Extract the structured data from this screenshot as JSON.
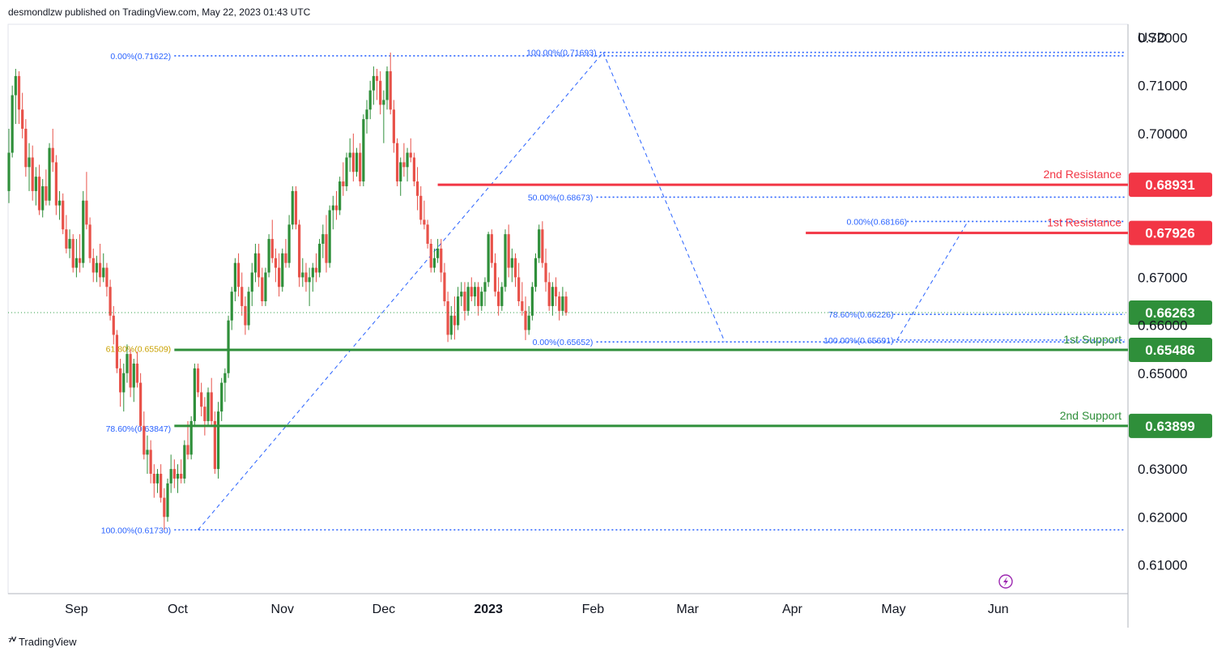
{
  "header": {
    "text": "desmondlzw published on TradingView.com, May 22, 2023 01:43 UTC"
  },
  "footer": {
    "brand": "TradingView"
  },
  "chart_data": {
    "type": "candlestick",
    "currency": "USD",
    "ylim": [
      0.6045,
      0.7255
    ],
    "y_ticks": [
      {
        "v": 0.72,
        "label": "0.72000"
      },
      {
        "v": 0.71,
        "label": "0.71000"
      },
      {
        "v": 0.7,
        "label": "0.70000"
      },
      {
        "v": 0.67,
        "label": "0.67000"
      },
      {
        "v": 0.66,
        "label": "0.66000"
      },
      {
        "v": 0.65,
        "label": "0.65000"
      },
      {
        "v": 0.63,
        "label": "0.63000"
      },
      {
        "v": 0.62,
        "label": "0.62000"
      },
      {
        "v": 0.61,
        "label": "0.61000"
      }
    ],
    "x_ticks": [
      {
        "label": "Sep",
        "d": 20,
        "bold": false
      },
      {
        "label": "Oct",
        "d": 50,
        "bold": false
      },
      {
        "label": "Nov",
        "d": 81,
        "bold": false
      },
      {
        "label": "Dec",
        "d": 111,
        "bold": false
      },
      {
        "label": "2023",
        "d": 142,
        "bold": true
      },
      {
        "label": "Feb",
        "d": 173,
        "bold": false
      },
      {
        "label": "Mar",
        "d": 201,
        "bold": false
      },
      {
        "label": "Apr",
        "d": 232,
        "bold": false
      },
      {
        "label": "May",
        "d": 262,
        "bold": false
      },
      {
        "label": "Jun",
        "d": 293,
        "bold": false
      }
    ],
    "levels": [
      {
        "name": "2nd Resistance",
        "price": 0.68931,
        "label": "0.68931",
        "kind": "resistance",
        "from_d": 127
      },
      {
        "name": "1st Resistance",
        "price": 0.67926,
        "label": "0.67926",
        "kind": "resistance",
        "from_d": 236
      },
      {
        "name": "1st Support",
        "price": 0.65486,
        "label": "0.65486",
        "kind": "support",
        "from_d": 49
      },
      {
        "name": "2nd Support",
        "price": 0.63899,
        "label": "0.63899",
        "kind": "support",
        "from_d": 49
      }
    ],
    "last_price": {
      "price": 0.66263,
      "label": "0.66263"
    },
    "fib_labels": [
      {
        "text": "0.00%(0.71622)",
        "d": 48,
        "price": 0.71622,
        "color": "#2962ff"
      },
      {
        "text": "100.00%(0.71693)",
        "d": 174,
        "price": 0.71693,
        "color": "#2962ff"
      },
      {
        "text": "50.00%(0.68673)",
        "d": 173,
        "price": 0.68673,
        "color": "#2962ff"
      },
      {
        "text": "0.00%(0.65652)",
        "d": 173,
        "price": 0.65652,
        "color": "#2962ff"
      },
      {
        "text": "0.00%(0.68166)",
        "d": 266,
        "price": 0.68166,
        "color": "#2962ff"
      },
      {
        "text": "78.60%(0.66226)",
        "d": 262,
        "price": 0.66226,
        "color": "#2962ff"
      },
      {
        "text": "100.00%(0.65691)",
        "d": 262,
        "price": 0.65691,
        "color": "#2962ff"
      },
      {
        "text": "61.80%(0.65509)",
        "d": 48,
        "price": 0.65509,
        "color": "#c9a100"
      },
      {
        "text": "78.60%(0.63847)",
        "d": 48,
        "price": 0.63847,
        "color": "#2962ff"
      },
      {
        "text": "100.00%(0.61730)",
        "d": 48,
        "price": 0.6173,
        "color": "#2962ff"
      }
    ],
    "fib_lines": [
      {
        "price": 0.71622,
        "from_d": 49,
        "to_d": 0,
        "color": "#2962ff"
      },
      {
        "price": 0.71693,
        "from_d": 175,
        "to_d": 0,
        "color": "#2962ff"
      },
      {
        "price": 0.68673,
        "from_d": 174,
        "to_d": 0,
        "color": "#2962ff"
      },
      {
        "price": 0.65652,
        "from_d": 174,
        "to_d": 0,
        "color": "#2962ff"
      },
      {
        "price": 0.68166,
        "from_d": 266,
        "to_d": 0,
        "color": "#2962ff"
      },
      {
        "price": 0.66226,
        "from_d": 262,
        "to_d": 0,
        "color": "#2962ff"
      },
      {
        "price": 0.65691,
        "from_d": 262,
        "to_d": 0,
        "color": "#2962ff"
      },
      {
        "price": 0.6173,
        "from_d": 49,
        "to_d": 0,
        "color": "#2962ff"
      }
    ],
    "trend_lines": [
      {
        "d1": 56,
        "p1": 0.6173,
        "d2": 176,
        "p2": 0.71693
      },
      {
        "d1": 176,
        "p1": 0.71693,
        "d2": 212,
        "p2": 0.65652
      },
      {
        "d1": 263,
        "p1": 0.65691,
        "d2": 284,
        "p2": 0.68166
      }
    ],
    "candles": [
      [
        0.688,
        0.701,
        0.6855,
        0.696
      ],
      [
        0.696,
        0.71,
        0.695,
        0.708
      ],
      [
        0.708,
        0.7135,
        0.702,
        0.712
      ],
      [
        0.712,
        0.713,
        0.702,
        0.705
      ],
      [
        0.705,
        0.7085,
        0.699,
        0.701
      ],
      [
        0.701,
        0.703,
        0.691,
        0.693
      ],
      [
        0.693,
        0.698,
        0.688,
        0.695
      ],
      [
        0.695,
        0.6975,
        0.686,
        0.688
      ],
      [
        0.688,
        0.693,
        0.685,
        0.691
      ],
      [
        0.691,
        0.6935,
        0.683,
        0.684
      ],
      [
        0.684,
        0.6905,
        0.6825,
        0.689
      ],
      [
        0.689,
        0.6925,
        0.685,
        0.686
      ],
      [
        0.686,
        0.698,
        0.685,
        0.697
      ],
      [
        0.697,
        0.701,
        0.692,
        0.694
      ],
      [
        0.694,
        0.6955,
        0.683,
        0.685
      ],
      [
        0.685,
        0.688,
        0.682,
        0.686
      ],
      [
        0.686,
        0.6875,
        0.679,
        0.68
      ],
      [
        0.68,
        0.683,
        0.675,
        0.676
      ],
      [
        0.676,
        0.68,
        0.674,
        0.678
      ],
      [
        0.678,
        0.679,
        0.671,
        0.672
      ],
      [
        0.672,
        0.678,
        0.67,
        0.674
      ],
      [
        0.674,
        0.679,
        0.671,
        0.673
      ],
      [
        0.673,
        0.688,
        0.672,
        0.686
      ],
      [
        0.686,
        0.692,
        0.68,
        0.681
      ],
      [
        0.681,
        0.6825,
        0.673,
        0.674
      ],
      [
        0.674,
        0.676,
        0.669,
        0.671
      ],
      [
        0.671,
        0.6745,
        0.669,
        0.673
      ],
      [
        0.673,
        0.677,
        0.668,
        0.67
      ],
      [
        0.67,
        0.675,
        0.669,
        0.672
      ],
      [
        0.672,
        0.673,
        0.666,
        0.668
      ],
      [
        0.668,
        0.6695,
        0.661,
        0.662
      ],
      [
        0.662,
        0.664,
        0.656,
        0.658
      ],
      [
        0.658,
        0.659,
        0.65,
        0.651
      ],
      [
        0.651,
        0.653,
        0.643,
        0.646
      ],
      [
        0.646,
        0.652,
        0.642,
        0.65
      ],
      [
        0.65,
        0.656,
        0.648,
        0.654
      ],
      [
        0.654,
        0.655,
        0.645,
        0.647
      ],
      [
        0.647,
        0.653,
        0.644,
        0.652
      ],
      [
        0.652,
        0.6545,
        0.647,
        0.648
      ],
      [
        0.648,
        0.65,
        0.638,
        0.639
      ],
      [
        0.639,
        0.642,
        0.632,
        0.633
      ],
      [
        0.633,
        0.637,
        0.629,
        0.634
      ],
      [
        0.634,
        0.636,
        0.627,
        0.629
      ],
      [
        0.629,
        0.631,
        0.624,
        0.627
      ],
      [
        0.627,
        0.63,
        0.625,
        0.629
      ],
      [
        0.629,
        0.631,
        0.623,
        0.624
      ],
      [
        0.624,
        0.626,
        0.6173,
        0.62
      ],
      [
        0.62,
        0.628,
        0.619,
        0.627
      ],
      [
        0.627,
        0.633,
        0.625,
        0.63
      ],
      [
        0.63,
        0.632,
        0.626,
        0.628
      ],
      [
        0.628,
        0.631,
        0.625,
        0.629
      ],
      [
        0.629,
        0.632,
        0.627,
        0.628
      ],
      [
        0.628,
        0.636,
        0.627,
        0.635
      ],
      [
        0.635,
        0.64,
        0.632,
        0.633
      ],
      [
        0.633,
        0.641,
        0.632,
        0.64
      ],
      [
        0.64,
        0.652,
        0.639,
        0.651
      ],
      [
        0.651,
        0.652,
        0.645,
        0.646
      ],
      [
        0.646,
        0.648,
        0.641,
        0.643
      ],
      [
        0.643,
        0.645,
        0.637,
        0.64
      ],
      [
        0.64,
        0.647,
        0.639,
        0.646
      ],
      [
        0.646,
        0.649,
        0.639,
        0.64
      ],
      [
        0.64,
        0.642,
        0.629,
        0.63
      ],
      [
        0.63,
        0.644,
        0.628,
        0.642
      ],
      [
        0.642,
        0.649,
        0.64,
        0.648
      ],
      [
        0.648,
        0.651,
        0.644,
        0.65
      ],
      [
        0.65,
        0.662,
        0.649,
        0.661
      ],
      [
        0.661,
        0.668,
        0.659,
        0.667
      ],
      [
        0.667,
        0.674,
        0.665,
        0.673
      ],
      [
        0.673,
        0.675,
        0.666,
        0.668
      ],
      [
        0.668,
        0.671,
        0.662,
        0.664
      ],
      [
        0.664,
        0.666,
        0.658,
        0.66
      ],
      [
        0.66,
        0.668,
        0.659,
        0.667
      ],
      [
        0.667,
        0.673,
        0.664,
        0.671
      ],
      [
        0.671,
        0.677,
        0.669,
        0.675
      ],
      [
        0.675,
        0.677,
        0.668,
        0.67
      ],
      [
        0.67,
        0.672,
        0.664,
        0.665
      ],
      [
        0.665,
        0.672,
        0.664,
        0.671
      ],
      [
        0.671,
        0.679,
        0.67,
        0.678
      ],
      [
        0.678,
        0.682,
        0.673,
        0.674
      ],
      [
        0.674,
        0.676,
        0.669,
        0.672
      ],
      [
        0.672,
        0.675,
        0.666,
        0.668
      ],
      [
        0.668,
        0.676,
        0.667,
        0.675
      ],
      [
        0.675,
        0.678,
        0.672,
        0.673
      ],
      [
        0.673,
        0.683,
        0.672,
        0.681
      ],
      [
        0.681,
        0.689,
        0.68,
        0.688
      ],
      [
        0.688,
        0.689,
        0.68,
        0.681
      ],
      [
        0.681,
        0.682,
        0.668,
        0.67
      ],
      [
        0.67,
        0.674,
        0.668,
        0.671
      ],
      [
        0.671,
        0.673,
        0.667,
        0.669
      ],
      [
        0.669,
        0.672,
        0.664,
        0.67
      ],
      [
        0.67,
        0.673,
        0.667,
        0.672
      ],
      [
        0.672,
        0.675,
        0.669,
        0.671
      ],
      [
        0.671,
        0.678,
        0.67,
        0.677
      ],
      [
        0.677,
        0.681,
        0.674,
        0.679
      ],
      [
        0.679,
        0.683,
        0.671,
        0.673
      ],
      [
        0.673,
        0.685,
        0.672,
        0.684
      ],
      [
        0.684,
        0.687,
        0.68,
        0.685
      ],
      [
        0.685,
        0.688,
        0.682,
        0.684
      ],
      [
        0.684,
        0.691,
        0.683,
        0.69
      ],
      [
        0.69,
        0.694,
        0.687,
        0.689
      ],
      [
        0.689,
        0.696,
        0.688,
        0.695
      ],
      [
        0.695,
        0.699,
        0.692,
        0.696
      ],
      [
        0.696,
        0.7,
        0.69,
        0.692
      ],
      [
        0.692,
        0.697,
        0.691,
        0.696
      ],
      [
        0.696,
        0.698,
        0.689,
        0.69
      ],
      [
        0.69,
        0.704,
        0.689,
        0.703
      ],
      [
        0.703,
        0.707,
        0.7,
        0.705
      ],
      [
        0.705,
        0.711,
        0.703,
        0.709
      ],
      [
        0.709,
        0.714,
        0.706,
        0.712
      ],
      [
        0.712,
        0.7135,
        0.707,
        0.711
      ],
      [
        0.711,
        0.713,
        0.704,
        0.706
      ],
      [
        0.706,
        0.709,
        0.698,
        0.707
      ],
      [
        0.707,
        0.714,
        0.705,
        0.713
      ],
      [
        0.713,
        0.7169,
        0.704,
        0.705
      ],
      [
        0.705,
        0.707,
        0.696,
        0.698
      ],
      [
        0.698,
        0.699,
        0.689,
        0.69
      ],
      [
        0.69,
        0.695,
        0.687,
        0.694
      ],
      [
        0.694,
        0.698,
        0.691,
        0.693
      ],
      [
        0.693,
        0.697,
        0.69,
        0.696
      ],
      [
        0.696,
        0.699,
        0.694,
        0.695
      ],
      [
        0.695,
        0.696,
        0.689,
        0.69
      ],
      [
        0.69,
        0.693,
        0.684,
        0.687
      ],
      [
        0.687,
        0.689,
        0.681,
        0.682
      ],
      [
        0.682,
        0.686,
        0.68,
        0.681
      ],
      [
        0.681,
        0.682,
        0.676,
        0.677
      ],
      [
        0.677,
        0.678,
        0.671,
        0.672
      ],
      [
        0.672,
        0.676,
        0.671,
        0.674
      ],
      [
        0.674,
        0.678,
        0.673,
        0.676
      ],
      [
        0.676,
        0.678,
        0.669,
        0.671
      ],
      [
        0.671,
        0.673,
        0.664,
        0.665
      ],
      [
        0.665,
        0.667,
        0.6565,
        0.658
      ],
      [
        0.658,
        0.664,
        0.657,
        0.662
      ],
      [
        0.662,
        0.666,
        0.657,
        0.66
      ],
      [
        0.66,
        0.668,
        0.659,
        0.666
      ],
      [
        0.666,
        0.669,
        0.664,
        0.667
      ],
      [
        0.667,
        0.669,
        0.661,
        0.663
      ],
      [
        0.663,
        0.669,
        0.662,
        0.668
      ],
      [
        0.668,
        0.67,
        0.665,
        0.666
      ],
      [
        0.666,
        0.669,
        0.664,
        0.668
      ],
      [
        0.668,
        0.669,
        0.662,
        0.664
      ],
      [
        0.664,
        0.668,
        0.663,
        0.667
      ],
      [
        0.667,
        0.67,
        0.664,
        0.669
      ],
      [
        0.669,
        0.6795,
        0.668,
        0.679
      ],
      [
        0.679,
        0.68,
        0.672,
        0.673
      ],
      [
        0.673,
        0.675,
        0.666,
        0.667
      ],
      [
        0.667,
        0.67,
        0.662,
        0.664
      ],
      [
        0.664,
        0.669,
        0.663,
        0.668
      ],
      [
        0.668,
        0.68,
        0.667,
        0.679
      ],
      [
        0.679,
        0.681,
        0.67,
        0.672
      ],
      [
        0.672,
        0.676,
        0.669,
        0.674
      ],
      [
        0.674,
        0.675,
        0.668,
        0.67
      ],
      [
        0.67,
        0.673,
        0.664,
        0.665
      ],
      [
        0.665,
        0.669,
        0.662,
        0.663
      ],
      [
        0.663,
        0.666,
        0.6569,
        0.659
      ],
      [
        0.659,
        0.664,
        0.658,
        0.662
      ],
      [
        0.662,
        0.669,
        0.661,
        0.668
      ],
      [
        0.668,
        0.675,
        0.667,
        0.674
      ],
      [
        0.674,
        0.681,
        0.673,
        0.68
      ],
      [
        0.68,
        0.6817,
        0.672,
        0.673
      ],
      [
        0.673,
        0.676,
        0.667,
        0.669
      ],
      [
        0.669,
        0.671,
        0.663,
        0.664
      ],
      [
        0.664,
        0.669,
        0.662,
        0.668
      ],
      [
        0.668,
        0.67,
        0.664,
        0.666
      ],
      [
        0.666,
        0.667,
        0.661,
        0.663
      ],
      [
        0.663,
        0.668,
        0.662,
        0.666
      ],
      [
        0.666,
        0.667,
        0.662,
        0.6626
      ]
    ]
  }
}
